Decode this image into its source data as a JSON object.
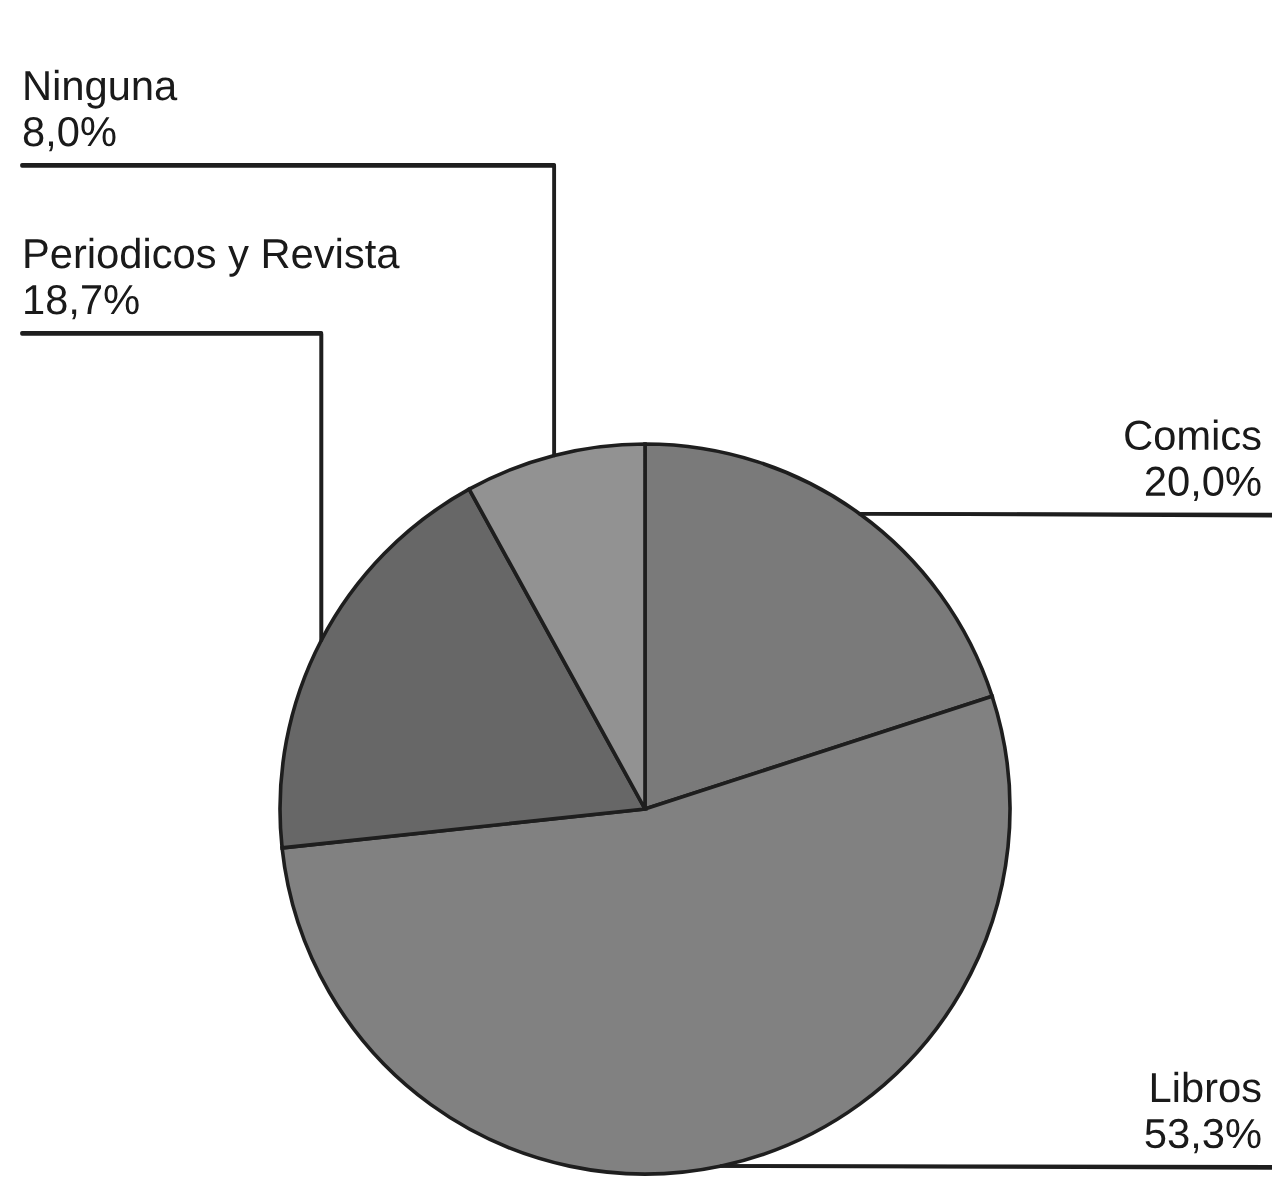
{
  "chart_data": {
    "type": "pie",
    "categories": [
      "Comics",
      "Libros",
      "Periodicos y Revista",
      "Ninguna"
    ],
    "values": [
      20.0,
      53.3,
      18.7,
      8.0
    ],
    "value_labels": [
      "20,0%",
      "53,3%",
      "18,7%",
      "8,0%"
    ],
    "colors": [
      "#7a7a7a",
      "#818181",
      "#676767",
      "#929292"
    ]
  }
}
